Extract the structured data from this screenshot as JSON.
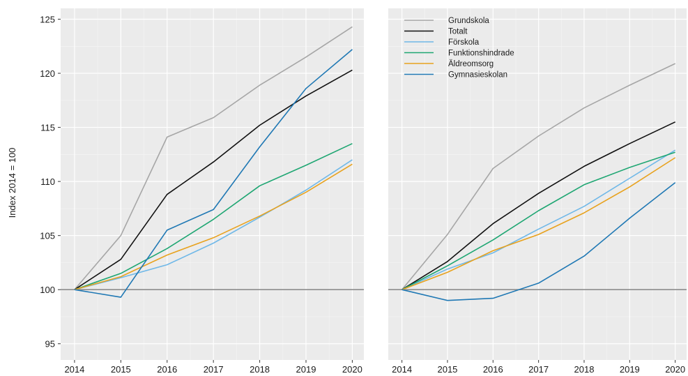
{
  "chart_data": {
    "type": "line",
    "ylabel": "Index 2014 = 100",
    "ylim": [
      93.5,
      126
    ],
    "yticks": [
      95,
      100,
      105,
      110,
      115,
      120,
      125
    ],
    "x": [
      2014,
      2015,
      2016,
      2017,
      2018,
      2019,
      2020
    ],
    "xlim": [
      2013.7,
      2020.25
    ],
    "reference_line": 100,
    "grid": true,
    "legend": {
      "placement": "top-left of right panel",
      "entries": [
        "Grundskola",
        "Totalt",
        "Förskola",
        "Funktionshindrade",
        "Äldreomsorg",
        "Gymnasieskolan"
      ]
    },
    "panels": [
      {
        "series": [
          {
            "name": "Grundskola",
            "color": "#a6a6a6",
            "values": [
              100,
              105.0,
              114.1,
              115.9,
              118.9,
              121.5,
              124.3
            ]
          },
          {
            "name": "Totalt",
            "color": "#111111",
            "values": [
              100,
              102.8,
              108.8,
              111.8,
              115.2,
              117.9,
              120.3
            ]
          },
          {
            "name": "Förskola",
            "color": "#6fb8e8",
            "values": [
              100,
              101.1,
              102.3,
              104.3,
              106.7,
              109.2,
              112.0
            ]
          },
          {
            "name": "Funktionshindrade",
            "color": "#1ea672",
            "values": [
              100,
              101.5,
              103.8,
              106.5,
              109.6,
              111.5,
              113.5
            ]
          },
          {
            "name": "Äldreomsorg",
            "color": "#e8a21e",
            "values": [
              100,
              101.2,
              103.2,
              104.8,
              106.8,
              109.0,
              111.6
            ]
          },
          {
            "name": "Gymnasieskolan",
            "color": "#1f78b4",
            "values": [
              100,
              99.3,
              105.5,
              107.4,
              113.2,
              118.6,
              122.2
            ]
          }
        ]
      },
      {
        "series": [
          {
            "name": "Grundskola",
            "color": "#a6a6a6",
            "values": [
              100,
              105.1,
              111.2,
              114.2,
              116.8,
              118.9,
              120.9
            ]
          },
          {
            "name": "Totalt",
            "color": "#111111",
            "values": [
              100,
              102.6,
              106.1,
              108.9,
              111.4,
              113.5,
              115.5
            ]
          },
          {
            "name": "Förskola",
            "color": "#6fb8e8",
            "values": [
              100,
              101.9,
              103.4,
              105.6,
              107.7,
              110.3,
              112.9
            ]
          },
          {
            "name": "Funktionshindrade",
            "color": "#1ea672",
            "values": [
              100,
              102.2,
              104.6,
              107.3,
              109.7,
              111.3,
              112.7
            ]
          },
          {
            "name": "Äldreomsorg",
            "color": "#e8a21e",
            "values": [
              100,
              101.6,
              103.6,
              105.1,
              107.1,
              109.5,
              112.2
            ]
          },
          {
            "name": "Gymnasieskolan",
            "color": "#1f78b4",
            "values": [
              100,
              99.0,
              99.2,
              100.6,
              103.1,
              106.6,
              109.9
            ]
          }
        ]
      }
    ]
  }
}
